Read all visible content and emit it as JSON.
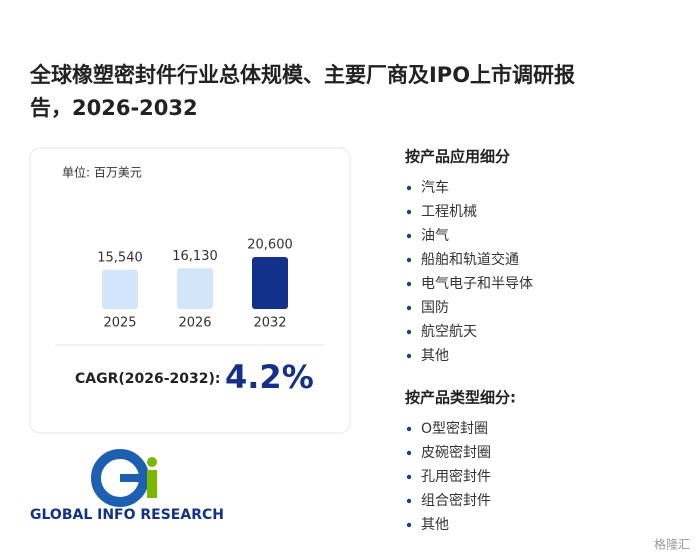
{
  "header": {
    "title_line1": "全球橡塑密封件行业总体规模、主要厂商及IPO上市调研报",
    "title_line2": "告，2026-2032"
  },
  "card": {
    "unit": "单位: 百万美元",
    "cagr_label": "CAGR(2026-2032):",
    "cagr_value": "4.2%"
  },
  "chart_data": {
    "type": "bar",
    "categories": [
      "2025",
      "2026",
      "2032"
    ],
    "values": [
      15540,
      16130,
      20600
    ],
    "value_labels": [
      "15,540",
      "16,130",
      "20,600"
    ],
    "colors": [
      "#d3e5f8",
      "#d3e5f8",
      "#13318a"
    ]
  },
  "segments": [
    {
      "heading": "按产品应用细分",
      "items": [
        "汽车",
        "工程机械",
        "油气",
        "船舶和轨道交通",
        "电气电子和半导体",
        "国防",
        "航空航天",
        "其他"
      ]
    },
    {
      "heading": "按产品类型细分:",
      "items": [
        "O型密封圈",
        "皮碗密封圈",
        "孔用密封件",
        "组合密封件",
        "其他"
      ]
    }
  ],
  "logo": {
    "text": "GLOBAL INFO RESEARCH"
  },
  "watermark": "格隆汇"
}
